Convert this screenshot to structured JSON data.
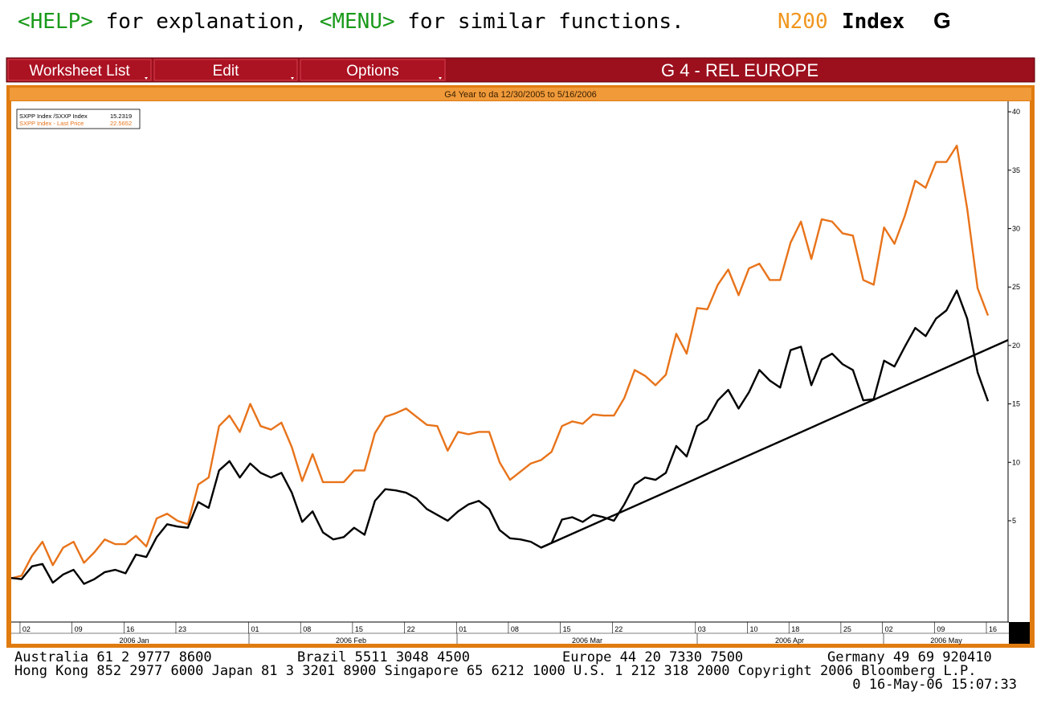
{
  "top_bar": {
    "help_key": "<HELP>",
    "help_text": " for explanation, ",
    "menu_key": "<MENU>",
    "menu_text": " for similar functions.",
    "ticker": "N200",
    "yellow_key": "Index",
    "function": "G"
  },
  "menu": {
    "buttons": [
      "Worksheet List",
      "Edit",
      "Options"
    ],
    "title": "G 4 - REL EUROPE"
  },
  "chart_data": {
    "type": "line",
    "subtitle": "G4 Year to da 12/30/2005 to 5/16/2006",
    "categories": [
      null,
      "02",
      null,
      null,
      null,
      null,
      "09",
      null,
      null,
      null,
      null,
      "16",
      null,
      null,
      null,
      null,
      "23",
      null,
      null,
      null,
      null,
      null,
      null,
      "01",
      null,
      null,
      null,
      null,
      "08",
      null,
      null,
      null,
      null,
      "15",
      null,
      null,
      null,
      null,
      "22",
      null,
      null,
      null,
      null,
      "01",
      null,
      null,
      null,
      null,
      "08",
      null,
      null,
      null,
      null,
      "15",
      null,
      null,
      null,
      null,
      "22",
      null,
      null,
      null,
      null,
      null,
      null,
      null,
      "03",
      null,
      null,
      null,
      null,
      "10",
      null,
      null,
      null,
      "18",
      null,
      null,
      null,
      null,
      "25",
      null,
      null,
      null,
      "02",
      null,
      null,
      null,
      null,
      "09",
      null,
      null,
      null,
      null,
      "16"
    ],
    "months": [
      "2006 Jan",
      "2006 Feb",
      "2006 Mar",
      "2006 Apr",
      "2006 May"
    ],
    "series": [
      {
        "name": "SXPP Index /SXXP Index",
        "color": "#000000",
        "values": [
          0.1,
          0,
          1.1,
          1.3,
          -0.3,
          0.4,
          0.8,
          -0.4,
          0,
          0.6,
          0.8,
          0.5,
          2.1,
          1.9,
          3.6,
          4.7,
          4.5,
          4.4,
          6.6,
          6.1,
          9.3,
          10.1,
          8.7,
          9.9,
          9.1,
          8.7,
          9.1,
          7.4,
          4.9,
          5.8,
          4.0,
          3.4,
          3.6,
          4.4,
          3.8,
          6.7,
          7.7,
          7.6,
          7.4,
          6.9,
          6.0,
          5.5,
          5.0,
          5.8,
          6.4,
          6.7,
          6.0,
          4.2,
          3.5,
          3.4,
          3.2,
          2.7,
          3.1,
          5.1,
          5.3,
          4.9,
          5.5,
          5.3,
          5.0,
          6.4,
          8.1,
          8.7,
          8.5,
          9.1,
          11.4,
          10.5,
          13.1,
          13.7,
          15.3,
          16.2,
          14.6,
          16.0,
          17.9,
          17.0,
          16.4,
          19.6,
          19.9,
          16.6,
          18.8,
          19.3,
          18.4,
          17.9,
          15.3,
          15.4,
          18.7,
          18.2,
          19.9,
          21.5,
          20.8,
          22.3,
          23.0,
          24.7,
          22.3,
          17.7,
          15.2319
        ]
      },
      {
        "name": "SXPP Index - Last Price",
        "color": "#e8731a",
        "values": [
          0.07,
          0.3,
          2.0,
          3.2,
          1.2,
          2.7,
          3.2,
          1.4,
          2.3,
          3.4,
          3.0,
          3.0,
          3.7,
          2.8,
          5.2,
          5.6,
          5.0,
          4.7,
          8.1,
          8.7,
          13.1,
          14.0,
          12.6,
          15.0,
          13.1,
          12.8,
          13.4,
          11.3,
          8.4,
          10.7,
          8.3,
          8.3,
          8.3,
          9.3,
          9.3,
          12.5,
          13.9,
          14.2,
          14.6,
          13.9,
          13.2,
          13.1,
          11.0,
          12.6,
          12.4,
          12.6,
          12.6,
          10.0,
          8.5,
          9.2,
          9.9,
          10.2,
          10.9,
          13.1,
          13.5,
          13.3,
          14.1,
          14.0,
          14.0,
          15.5,
          17.9,
          17.4,
          16.6,
          17.5,
          21.0,
          19.3,
          23.2,
          23.1,
          25.2,
          26.5,
          24.3,
          26.6,
          27.0,
          25.6,
          25.6,
          28.8,
          30.6,
          27.4,
          30.8,
          30.6,
          29.6,
          29.4,
          25.6,
          25.2,
          30.1,
          28.7,
          31.1,
          34.1,
          33.5,
          35.7,
          35.7,
          37.1,
          31.7,
          24.9,
          22.5652
        ]
      }
    ],
    "trend_line": {
      "color": "#000000",
      "values": [
        null,
        null,
        null,
        null,
        null,
        null,
        null,
        null,
        null,
        null,
        null,
        null,
        null,
        null,
        null,
        null,
        null,
        null,
        null,
        null,
        null,
        null,
        null,
        null,
        null,
        null,
        null,
        null,
        null,
        null,
        null,
        null,
        null,
        null,
        null,
        null,
        null,
        null,
        null,
        null,
        null,
        null,
        null,
        null,
        null,
        null,
        null,
        null,
        null,
        null,
        null,
        2.7,
        null,
        null,
        null,
        null,
        null,
        null,
        null,
        null,
        null,
        null,
        null,
        null,
        null,
        null,
        null,
        null,
        null,
        null,
        null,
        null,
        null,
        null,
        null,
        null,
        null,
        null,
        null,
        null,
        null,
        null,
        null,
        null,
        null,
        null,
        null,
        null,
        null,
        null,
        null,
        null,
        null,
        null,
        19.7
      ]
    },
    "ylim": [
      -3.6,
      40.9
    ],
    "yticks": [
      5,
      10,
      15,
      20,
      25,
      30,
      35,
      40
    ],
    "y_axis_side": "right"
  },
  "footer": {
    "lines": [
      [
        "Australia 61 2 9777 8600",
        "Brazil 5511 3048 4500",
        "Europe 44 20 7330 7500",
        "Germany 49 69 920410"
      ],
      [
        "Hong Kong 852 2977 6000 Japan 81 3 3201 8900 Singapore 65 6212 1000 U.S. 1 212 318 2000 Copyright 2006 Bloomberg L.P."
      ]
    ],
    "timestamp": "0 16-May-06 15:07:33"
  }
}
